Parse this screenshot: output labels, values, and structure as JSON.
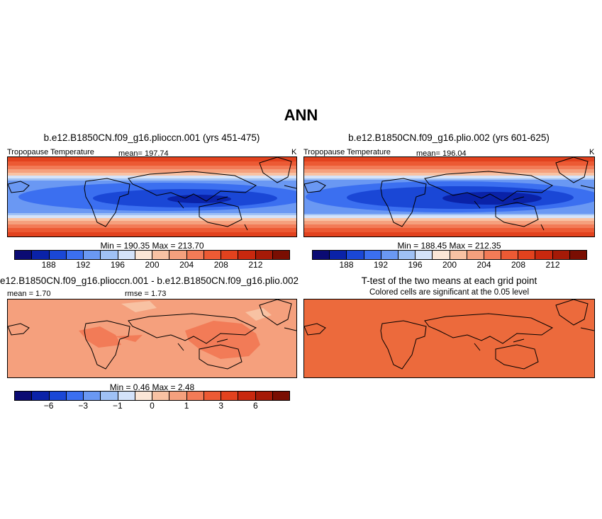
{
  "title": "ANN",
  "panel1": {
    "case": "b.e12.B1850CN.f09_g16.plioccn.001 (yrs 451-475)",
    "variable": "Tropopause Temperature",
    "mean": "mean=  197.74",
    "units": "K",
    "minmax": "Min =  190.35  Max =  213.70"
  },
  "panel2": {
    "case": "b.e12.B1850CN.f09_g16.plio.002 (yrs 601-625)",
    "variable": "Tropopause Temperature",
    "mean": "mean=  196.04",
    "units": "K",
    "minmax": "Min =  188.45  Max =  212.35"
  },
  "panel3": {
    "case": "e12.B1850CN.f09_g16.plioccn.001 - b.e12.B1850CN.f09_g16.plio.002",
    "mean": "mean =    1.70",
    "rmse": "rmse =    1.73",
    "minmax": "Min =     0.46  Max =     2.48"
  },
  "panel4": {
    "title": "T-test of the two means at each grid point",
    "subtitle": "Colored cells are significant at the 0.05 level"
  },
  "colorbar_top": {
    "colors": [
      "#0b0b73",
      "#0a22a8",
      "#1a47d6",
      "#3b6ff0",
      "#6a98f3",
      "#9fc1f5",
      "#d4e3fa",
      "#fbe6d6",
      "#f8c2a3",
      "#f5a07d",
      "#f27b57",
      "#ec5a34",
      "#e2421e",
      "#c9280e",
      "#a51a07",
      "#7a0e02"
    ],
    "labels": [
      "188",
      "192",
      "196",
      "200",
      "204",
      "208",
      "212"
    ]
  },
  "colorbar_diff": {
    "colors": [
      "#0b0b73",
      "#0a22a8",
      "#1a47d6",
      "#3b6ff0",
      "#6a98f3",
      "#9fc1f5",
      "#d4e3fa",
      "#fbe6d6",
      "#f8c2a3",
      "#f5a07d",
      "#f27b57",
      "#ec5a34",
      "#e2421e",
      "#c9280e",
      "#a51a07",
      "#7a0e02"
    ],
    "labels": [
      "−6",
      "−3",
      "−1",
      "0",
      "1",
      "3",
      "6"
    ]
  }
}
